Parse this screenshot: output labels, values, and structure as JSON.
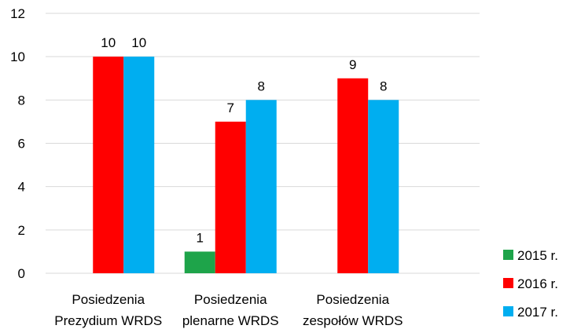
{
  "chart_data": {
    "type": "bar",
    "categories": [
      [
        "Posiedzenia",
        "Prezydium WRDS"
      ],
      [
        "Posiedzenia",
        "plenarne WRDS"
      ],
      [
        "Posiedzenia",
        "zespołów WRDS"
      ]
    ],
    "series": [
      {
        "name": "2015 r.",
        "color": "#1ea44a",
        "values": [
          null,
          1,
          null
        ]
      },
      {
        "name": "2016 r.",
        "color": "#ff0000",
        "values": [
          10,
          7,
          9
        ]
      },
      {
        "name": "2017 r.",
        "color": "#00aef0",
        "values": [
          10,
          8,
          8
        ]
      }
    ],
    "title": "",
    "xlabel": "",
    "ylabel": "",
    "ylim": [
      0,
      12
    ],
    "yticks": [
      0,
      2,
      4,
      6,
      8,
      10,
      12
    ],
    "grid": true,
    "legend_position": "bottom-right",
    "data_labels": true
  }
}
